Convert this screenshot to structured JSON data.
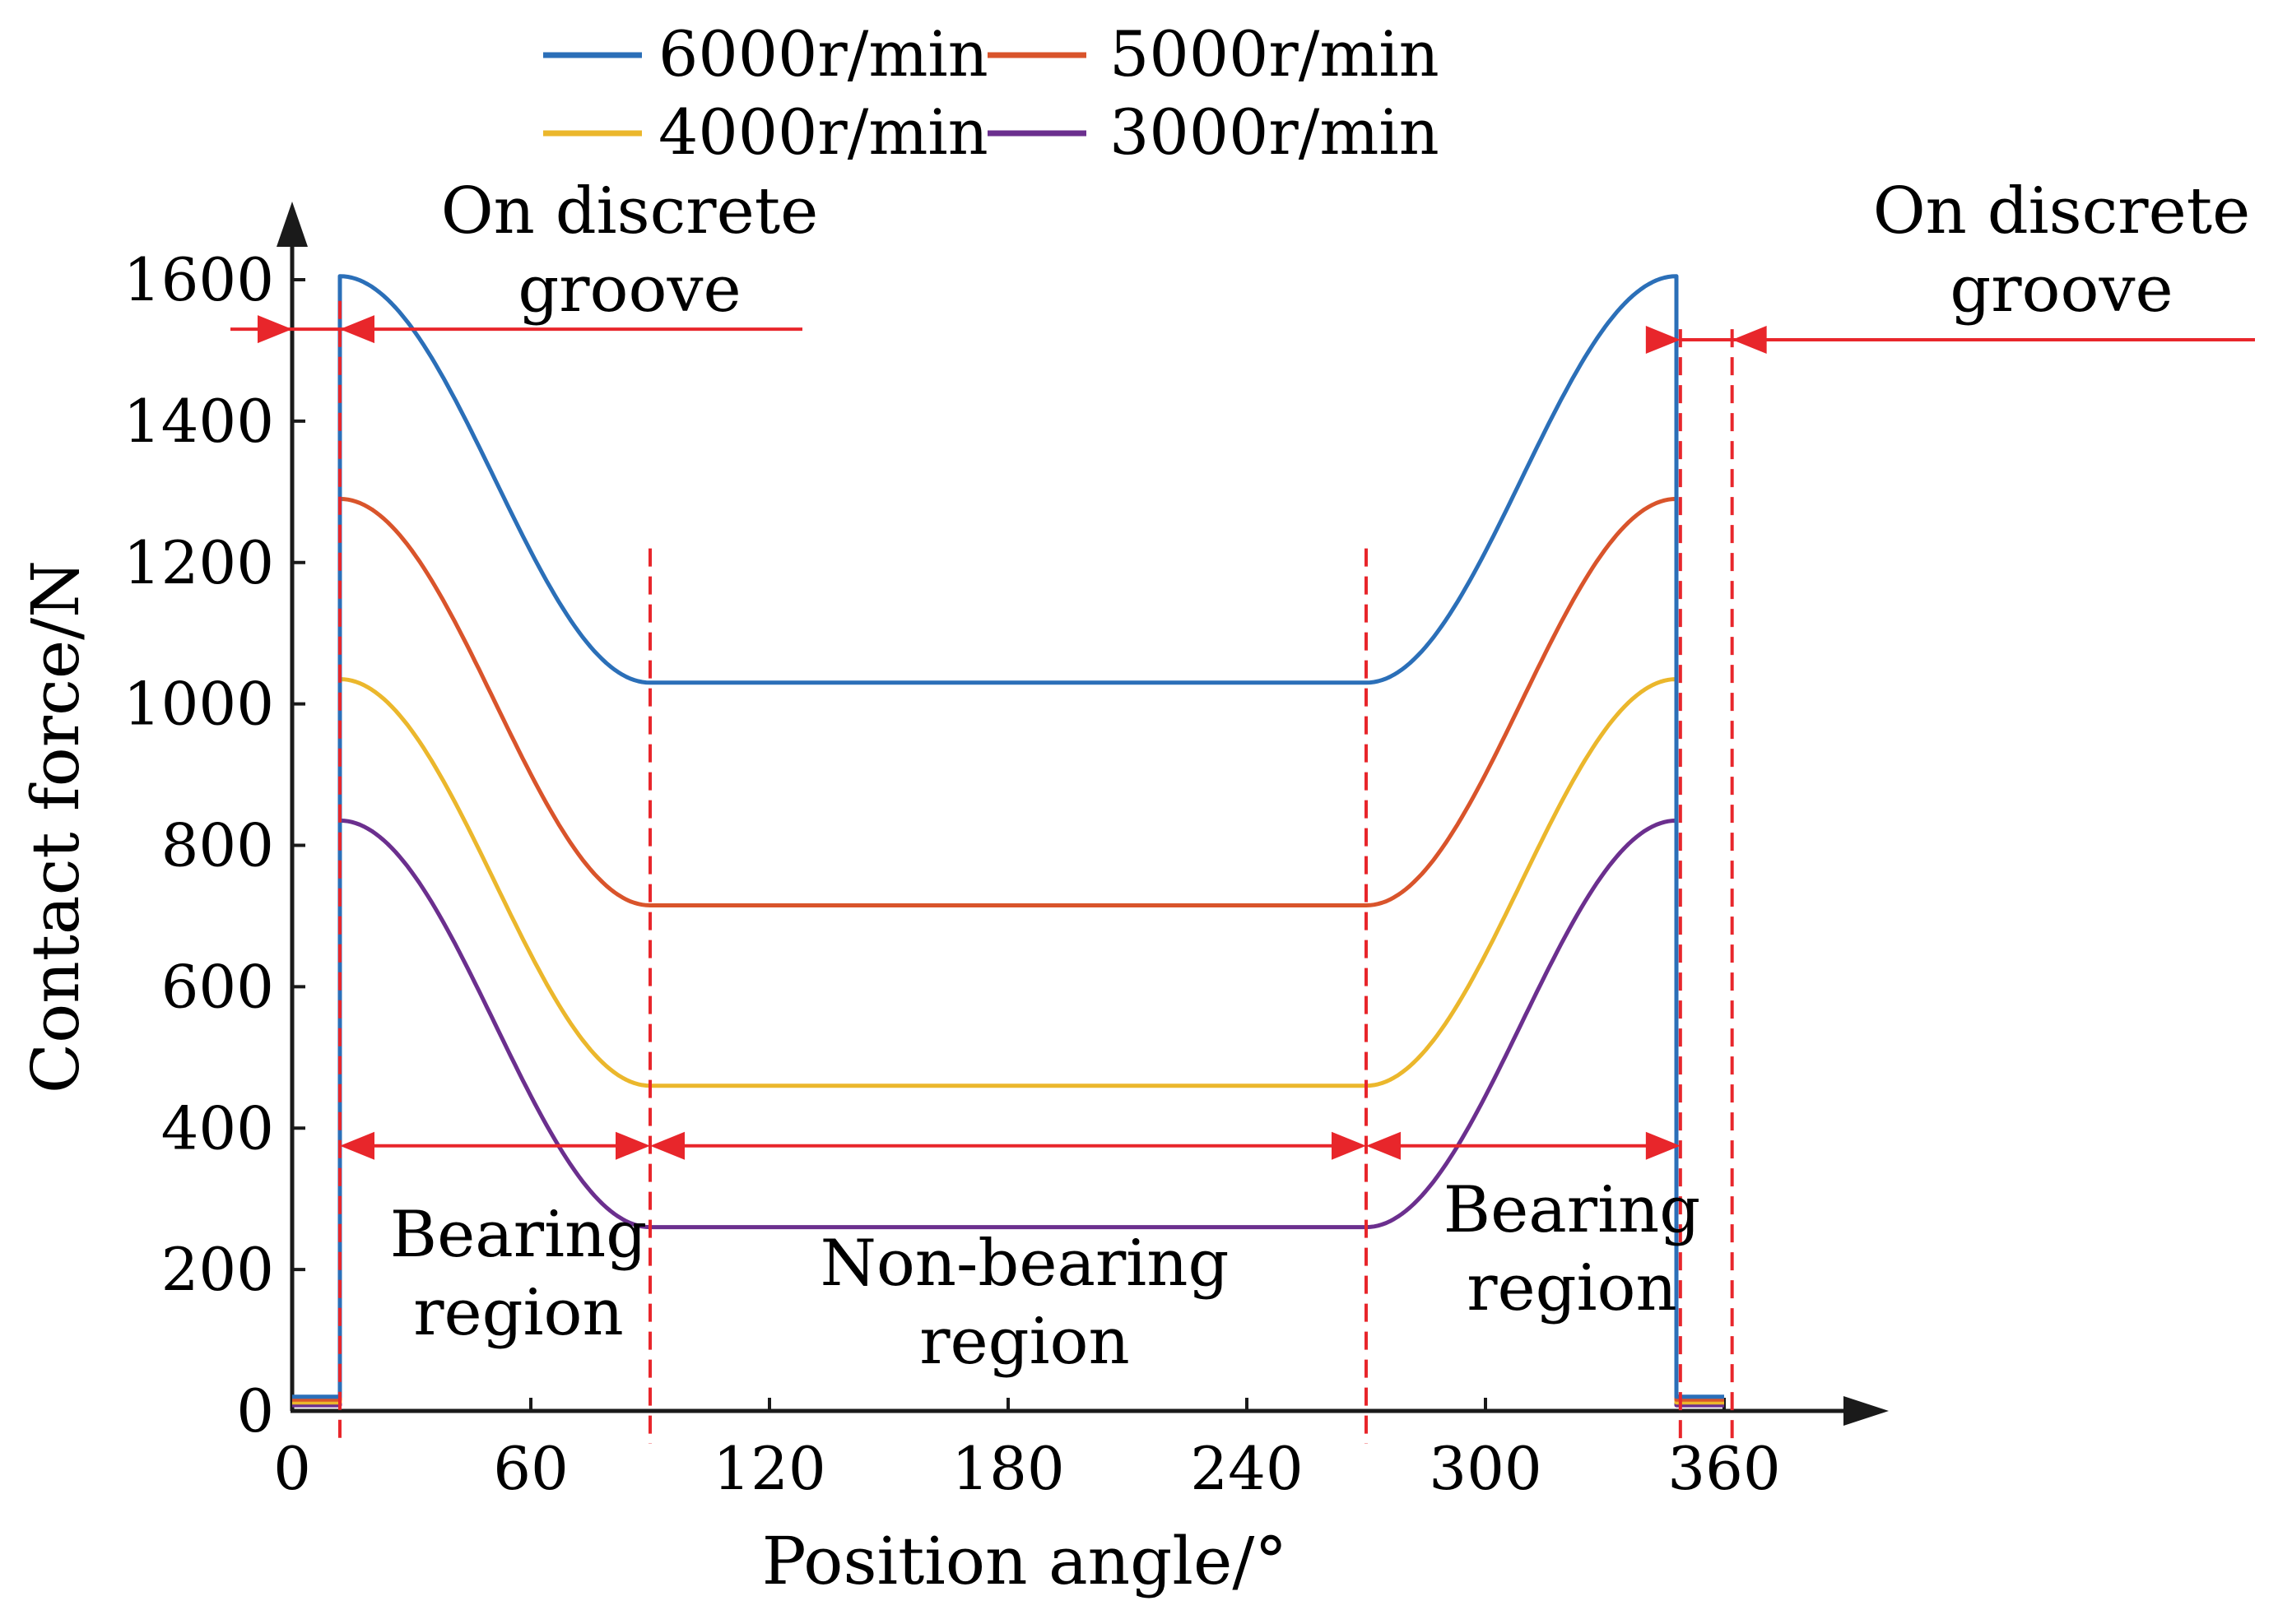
{
  "chart_data": {
    "type": "line",
    "title": "",
    "xlabel": "Position angle/°",
    "ylabel": "Contact force/N",
    "xlim": [
      0,
      390
    ],
    "ylim": [
      0,
      1700
    ],
    "xticks": [
      0,
      60,
      120,
      180,
      240,
      300,
      360
    ],
    "yticks": [
      0,
      200,
      400,
      600,
      800,
      1000,
      1200,
      1400,
      1600
    ],
    "xtick_labels": [
      "0",
      "60",
      "120",
      "180",
      "240",
      "300",
      "360"
    ],
    "ytick_labels": [
      "0",
      "200",
      "400",
      "600",
      "800",
      "1000",
      "1200",
      "1400",
      "1600"
    ],
    "grid": false,
    "legend_position": "top-center",
    "series": [
      {
        "name": "6000r/min",
        "color": "#2b6fb8",
        "peak": 1605,
        "floor": 1030,
        "groove_value": 20
      },
      {
        "name": "5000r/min",
        "color": "#d9542b",
        "peak": 1290,
        "floor": 715,
        "groove_value": 16
      },
      {
        "name": "4000r/min",
        "color": "#ebb72c",
        "peak": 1035,
        "floor": 460,
        "groove_value": 12
      },
      {
        "name": "3000r/min",
        "color": "#6b2f8e",
        "peak": 835,
        "floor": 260,
        "groove_value": 8
      }
    ],
    "curve_shape": {
      "groove_end_angle": 12,
      "bearing_end_angle": 90,
      "nonbearing_end_angle": 270,
      "bearing2_end_angle": 348,
      "period_angle": 360
    },
    "annotations": {
      "groove_left": {
        "line1": "On discrete",
        "line2": "groove"
      },
      "groove_right": {
        "line1": "On discrete",
        "line2": "groove"
      },
      "bearing_left": {
        "line1": "Bearing",
        "line2": "region"
      },
      "nonbearing": {
        "line1": "Non-bearing",
        "line2": "region"
      },
      "bearing_right": {
        "line1": "Bearing",
        "line2": "region"
      }
    },
    "annotation_color": "#e8262b"
  }
}
